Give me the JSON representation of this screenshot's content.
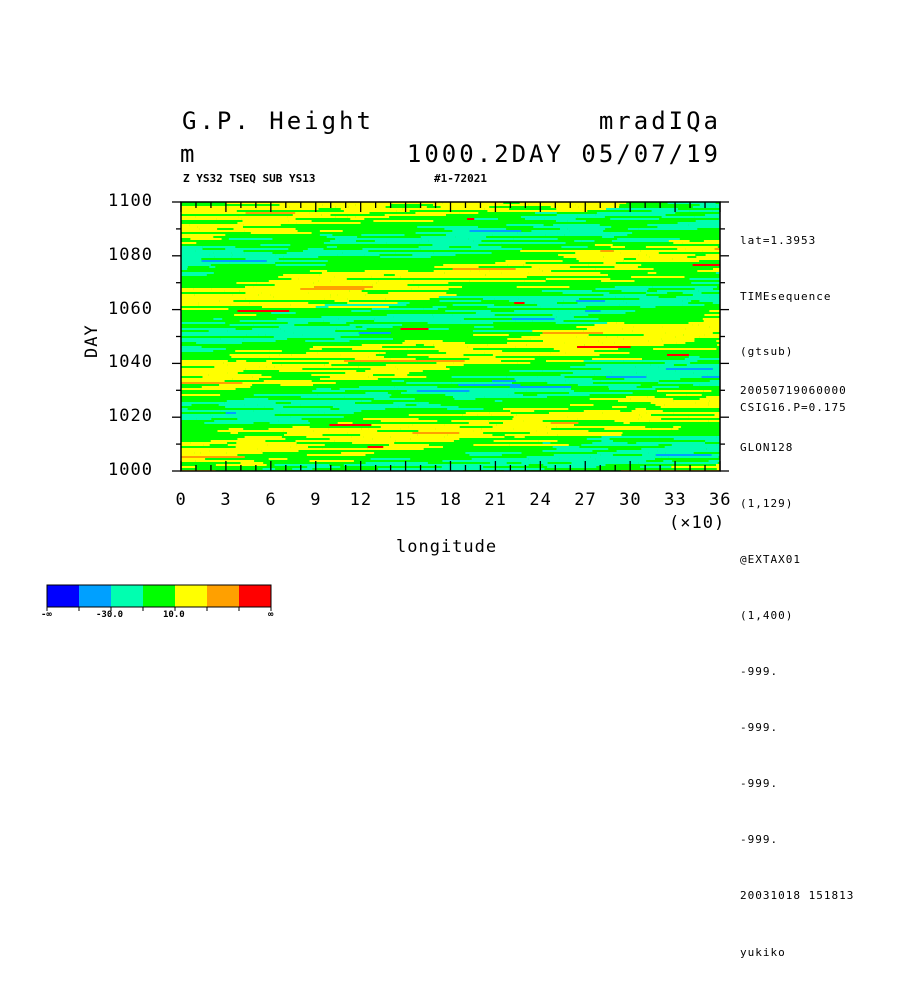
{
  "header": {
    "title_left": "G.P. Height",
    "unit": "m",
    "title_right": "mradIQa",
    "subtitle_right": "1000.2DAY 05/07/19",
    "info_left": "Z YS32 TSEQ SUB YS13",
    "info_mid": "#1-72021"
  },
  "side_info": {
    "lines_top": [
      "lat=1.3953",
      "TIMEsequence",
      "(gtsub)",
      "CSIG16.P=0.175"
    ],
    "lines_bottom": [
      "20050719060000",
      "GLON128",
      "(1,129)",
      "@EXTAX01",
      "(1,400)",
      "-999.",
      "-999.",
      "-999.",
      "-999.",
      "20031018 151813",
      "yukiko"
    ]
  },
  "chart_data": {
    "type": "heatmap",
    "title": "G.P. Height",
    "xlabel": "longitude",
    "x_multiplier_label": "(×10)",
    "ylabel": "DAY",
    "xlim": [
      0,
      36
    ],
    "ylim": [
      1000,
      1100
    ],
    "x_ticks": [
      "0",
      "3",
      "6",
      "9",
      "12",
      "15",
      "18",
      "21",
      "24",
      "27",
      "30",
      "33",
      "36"
    ],
    "y_ticks": [
      "1000",
      "1020",
      "1040",
      "1060",
      "1080",
      "1100"
    ],
    "colorbar": {
      "colors": [
        "#0000ff",
        "#00a0ff",
        "#00ffb0",
        "#00ff00",
        "#ffff00",
        "#ffa000",
        "#ff0000"
      ],
      "labels": [
        "-∞",
        "-30.0",
        "10.0",
        "∞"
      ]
    }
  }
}
